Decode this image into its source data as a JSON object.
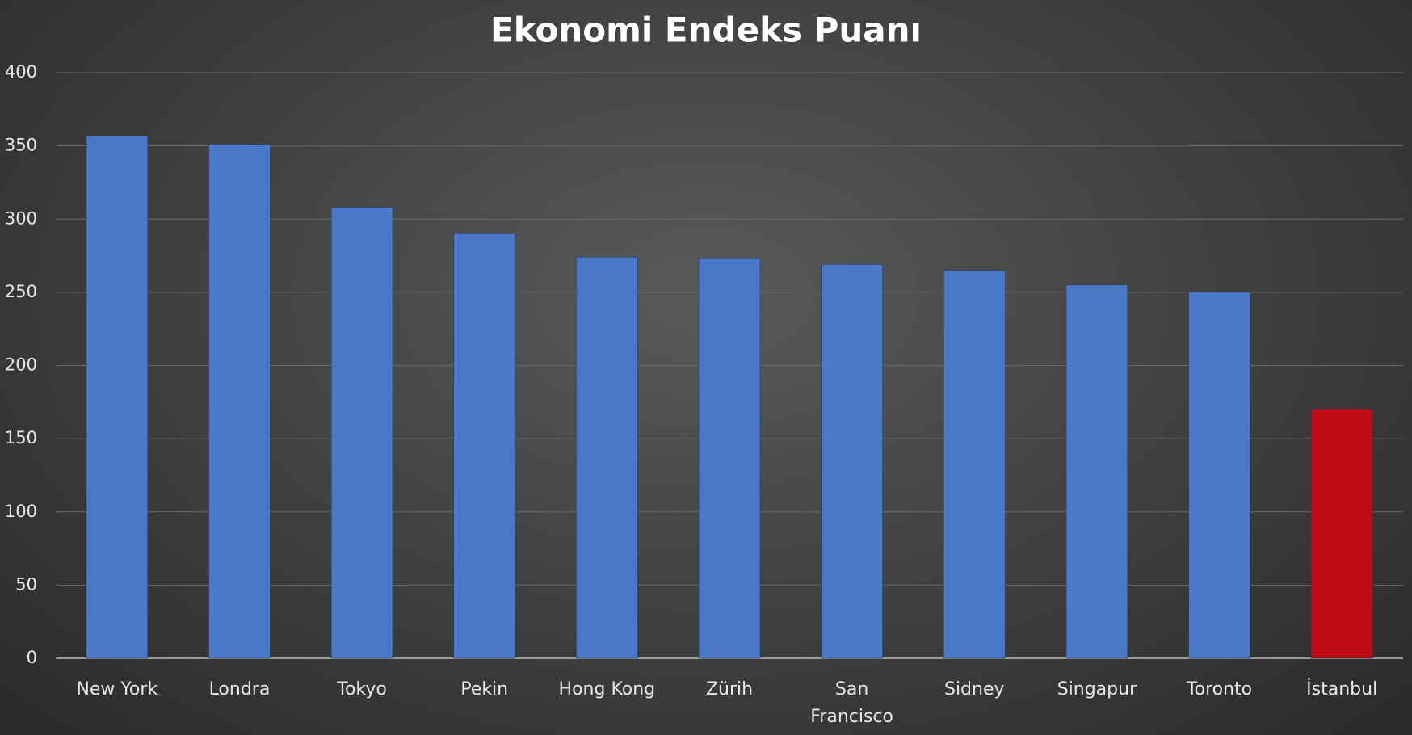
{
  "chart_data": {
    "type": "bar",
    "title": "Ekonomi Endeks Puanı",
    "categories": [
      "New York",
      "Londra",
      "Tokyo",
      "Pekin",
      "Hong Kong",
      "Zürih",
      "San Francisco",
      "Sidney",
      "Singapur",
      "Toronto",
      "İstanbul"
    ],
    "values": [
      357,
      351,
      308,
      290,
      274,
      273,
      269,
      265,
      255,
      250,
      170
    ],
    "colors": [
      "#4a78c8",
      "#4a78c8",
      "#4a78c8",
      "#4a78c8",
      "#4a78c8",
      "#4a78c8",
      "#4a78c8",
      "#4a78c8",
      "#4a78c8",
      "#4a78c8",
      "#c00a16"
    ],
    "ylim": [
      0,
      400
    ],
    "yticks": [
      0,
      50,
      100,
      150,
      200,
      250,
      300,
      350,
      400
    ],
    "grid": true
  }
}
